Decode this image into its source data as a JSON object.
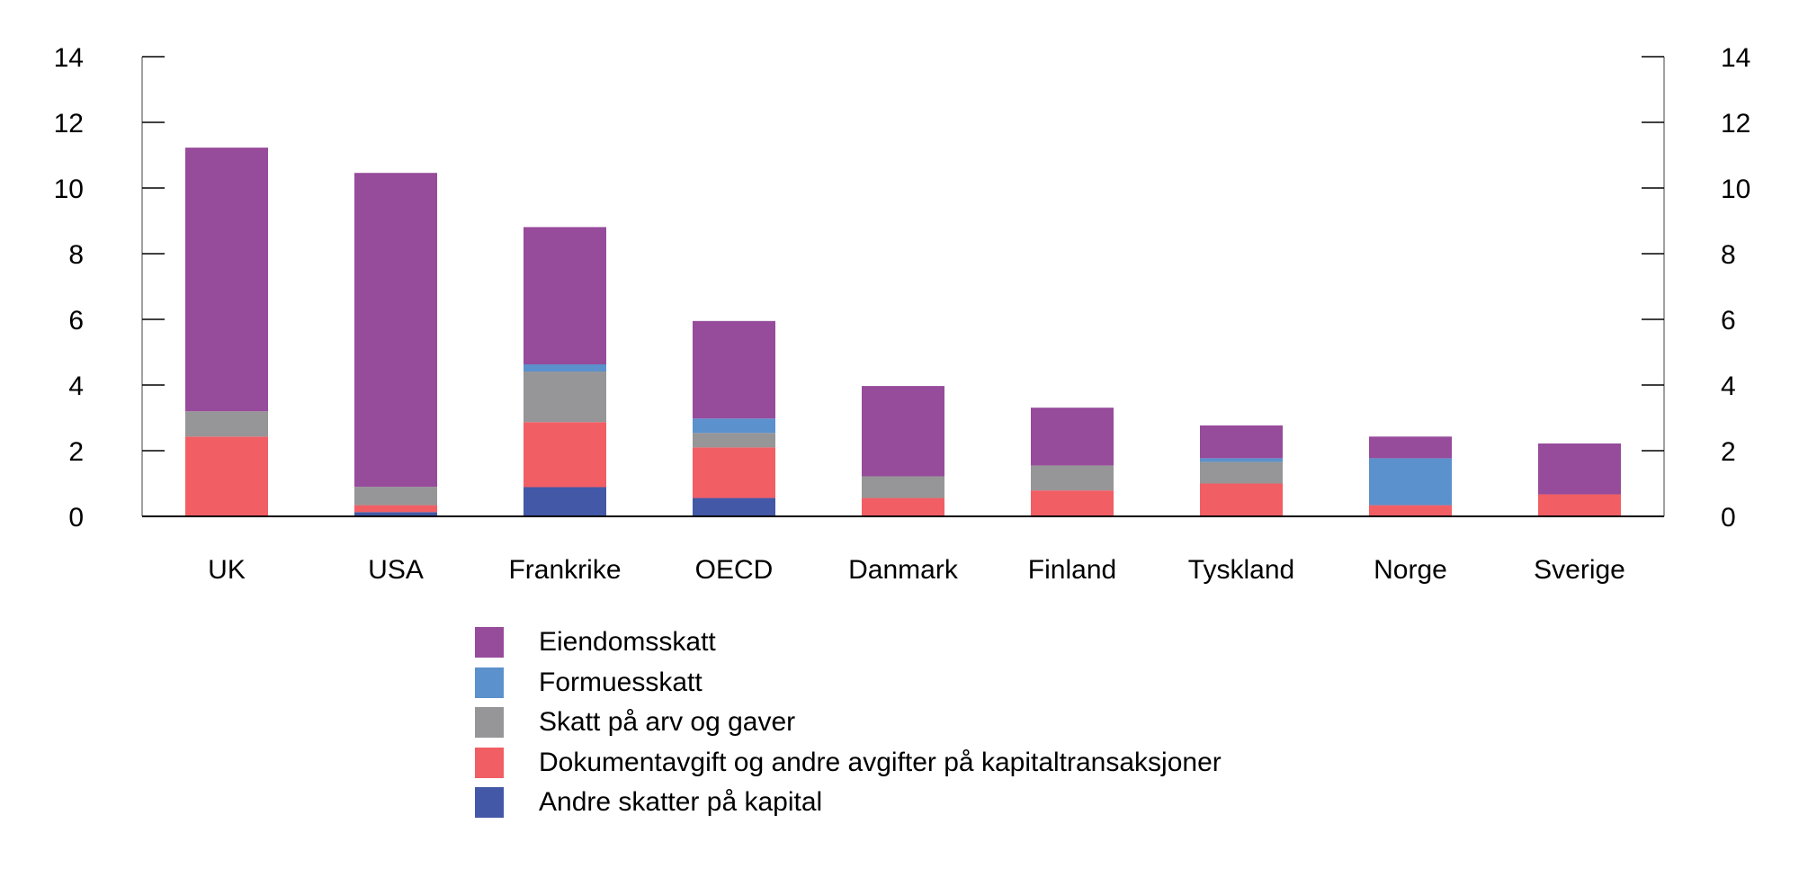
{
  "chart_data": {
    "type": "bar",
    "stacked": true,
    "title": "",
    "xlabel": "",
    "ylabel": "",
    "ylim": [
      0,
      14
    ],
    "yticks": [
      0,
      2,
      4,
      6,
      8,
      10,
      12,
      14
    ],
    "y_axis_both_sides": true,
    "grid": false,
    "legend_position": "bottom",
    "categories": [
      "UK",
      "USA",
      "Frankrike",
      "OECD",
      "Danmark",
      "Finland",
      "Tyskland",
      "Norge",
      "Sverige"
    ],
    "series": [
      {
        "name": "Andre skatter på kapital",
        "color": "#4358a7",
        "values": [
          0.0,
          0.13,
          0.89,
          0.56,
          0.0,
          0.0,
          0.0,
          0.0,
          0.0
        ]
      },
      {
        "name": "Dokumentavgift og andre avgifter på kapitaltransaksjoner",
        "color": "#f15e64",
        "values": [
          2.43,
          0.21,
          1.98,
          1.54,
          0.56,
          0.79,
          1.0,
          0.34,
          0.67
        ]
      },
      {
        "name": "Skatt på arv og gaver",
        "color": "#969597",
        "values": [
          0.77,
          0.56,
          1.54,
          0.44,
          0.66,
          0.76,
          0.66,
          0.0,
          0.0
        ]
      },
      {
        "name": "Formuesskatt",
        "color": "#5b91cc",
        "values": [
          0.0,
          0.0,
          0.22,
          0.44,
          0.0,
          0.0,
          0.11,
          1.43,
          0.0
        ]
      },
      {
        "name": "Eiendomsskatt",
        "color": "#974b9b",
        "values": [
          8.03,
          9.56,
          4.18,
          2.97,
          2.75,
          1.76,
          1.0,
          0.66,
          1.55
        ]
      }
    ],
    "totals": [
      11.23,
      10.46,
      8.81,
      5.95,
      3.97,
      3.31,
      2.77,
      2.43,
      2.22
    ]
  },
  "legend": {
    "items": [
      {
        "label": "Eiendomsskatt",
        "color": "#974b9b"
      },
      {
        "label": "Formuesskatt",
        "color": "#5b91cc"
      },
      {
        "label": "Skatt på arv og gaver",
        "color": "#969597"
      },
      {
        "label": "Dokumentavgift og andre avgifter på kapitaltransaksjoner",
        "color": "#f15e64"
      },
      {
        "label": "Andre skatter på kapital",
        "color": "#4358a7"
      }
    ]
  }
}
